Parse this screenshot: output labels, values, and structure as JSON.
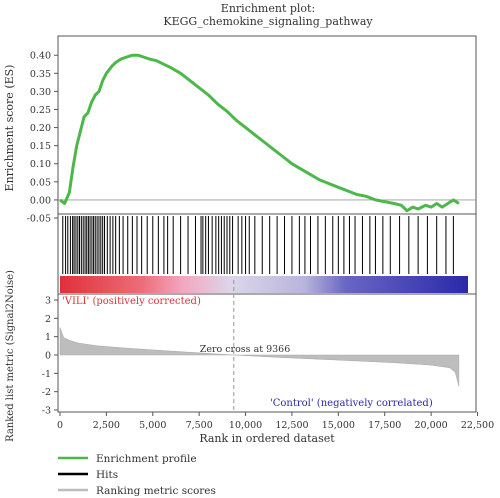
{
  "chart_data": {
    "type": "line",
    "title": "Enrichment plot:",
    "subtitle": "KEGG_chemokine_signaling_pathway",
    "xlabel": "Rank in ordered dataset",
    "xlim": [
      0,
      22500
    ],
    "x_ticks": [
      "0",
      "2,500",
      "5,000",
      "7,500",
      "10,000",
      "12,500",
      "15,000",
      "17,500",
      "20,000",
      "22,500"
    ],
    "es_panel": {
      "ylabel": "Enrichment score (ES)",
      "ylim": [
        -0.05,
        0.42
      ],
      "y_ticks": [
        "0.40",
        "0.35",
        "0.30",
        "0.25",
        "0.20",
        "0.15",
        "0.10",
        "0.05",
        "0.00",
        "-0.05"
      ],
      "series": [
        {
          "name": "Enrichment profile",
          "color": "#4cb84a",
          "x": [
            0,
            250,
            500,
            700,
            900,
            1100,
            1300,
            1500,
            1700,
            1900,
            2100,
            2300,
            2500,
            2800,
            3000,
            3300,
            3600,
            3900,
            4200,
            4500,
            4800,
            5200,
            5600,
            6000,
            6500,
            7000,
            7500,
            8000,
            8500,
            9000,
            9500,
            10000,
            10500,
            11000,
            11500,
            12000,
            12500,
            13000,
            13500,
            14000,
            14500,
            15000,
            15500,
            16000,
            16500,
            17000,
            17500,
            18000,
            18400,
            18700,
            19000,
            19300,
            19700,
            20000,
            20300,
            20600,
            20900,
            21200,
            21500
          ],
          "values": [
            0.0,
            -0.01,
            0.02,
            0.09,
            0.15,
            0.19,
            0.23,
            0.24,
            0.27,
            0.29,
            0.3,
            0.33,
            0.35,
            0.37,
            0.38,
            0.39,
            0.395,
            0.4,
            0.4,
            0.395,
            0.39,
            0.385,
            0.375,
            0.365,
            0.35,
            0.33,
            0.31,
            0.29,
            0.265,
            0.245,
            0.22,
            0.2,
            0.18,
            0.16,
            0.14,
            0.12,
            0.1,
            0.085,
            0.07,
            0.055,
            0.045,
            0.035,
            0.025,
            0.015,
            0.01,
            0.0,
            -0.005,
            -0.01,
            -0.015,
            -0.03,
            -0.02,
            -0.025,
            -0.015,
            -0.02,
            -0.01,
            -0.02,
            -0.01,
            0.0,
            -0.01
          ]
        }
      ]
    },
    "hits_panel": {
      "name": "Hits",
      "color": "#000000",
      "positions": [
        150,
        300,
        420,
        560,
        680,
        760,
        860,
        960,
        1050,
        1150,
        1250,
        1350,
        1440,
        1530,
        1620,
        1720,
        1810,
        1900,
        2000,
        2100,
        2200,
        2300,
        2400,
        2550,
        2700,
        2850,
        3000,
        3200,
        3400,
        3650,
        3900,
        4150,
        4400,
        4700,
        5000,
        5300,
        5600,
        5800,
        6100,
        6500,
        6900,
        7300,
        7600,
        7700,
        7850,
        8000,
        8200,
        8400,
        8550,
        8700,
        8850,
        9000,
        9150,
        9300,
        9600,
        9800,
        10000,
        10200,
        10500,
        10900,
        11300,
        11700,
        12100,
        12500,
        12900,
        13200,
        13500,
        13900,
        14300,
        14700,
        15000,
        15300,
        15600,
        15900,
        16300,
        16700,
        17000,
        17400,
        17800,
        18300,
        18800,
        19300,
        19800,
        20300,
        20800,
        21200
      ]
    },
    "ranking_panel": {
      "name": "Ranking metric scores",
      "color": "#bdbdbd",
      "ylabel": "Ranked list metric (Signal2Noise)",
      "ylim": [
        -3,
        3
      ],
      "y_ticks": [
        "3",
        "2",
        "1",
        "0",
        "-1",
        "-2",
        "-3"
      ],
      "x": [
        0,
        200,
        500,
        1000,
        2000,
        3500,
        5000,
        7000,
        9366,
        12000,
        15000,
        18000,
        20000,
        21000,
        21300,
        21500
      ],
      "values": [
        1.5,
        0.95,
        0.8,
        0.65,
        0.5,
        0.38,
        0.28,
        0.15,
        0.0,
        -0.14,
        -0.28,
        -0.42,
        -0.55,
        -0.7,
        -0.95,
        -1.7
      ],
      "zero_cross": 9366,
      "zero_cross_label": "Zero cross at 9366",
      "pos_label": "'VILI' (positively corrected)",
      "neg_label": "'Control' (negatively correlated)",
      "pos_color": "#e0303a",
      "neg_color": "#2a2aa8"
    },
    "legend": {
      "placement": "bottom-left",
      "items": [
        {
          "name": "Enrichment profile",
          "color": "#4cb84a"
        },
        {
          "name": "Hits",
          "color": "#000000"
        },
        {
          "name": "Ranking metric scores",
          "color": "#bdbdbd"
        }
      ]
    }
  }
}
